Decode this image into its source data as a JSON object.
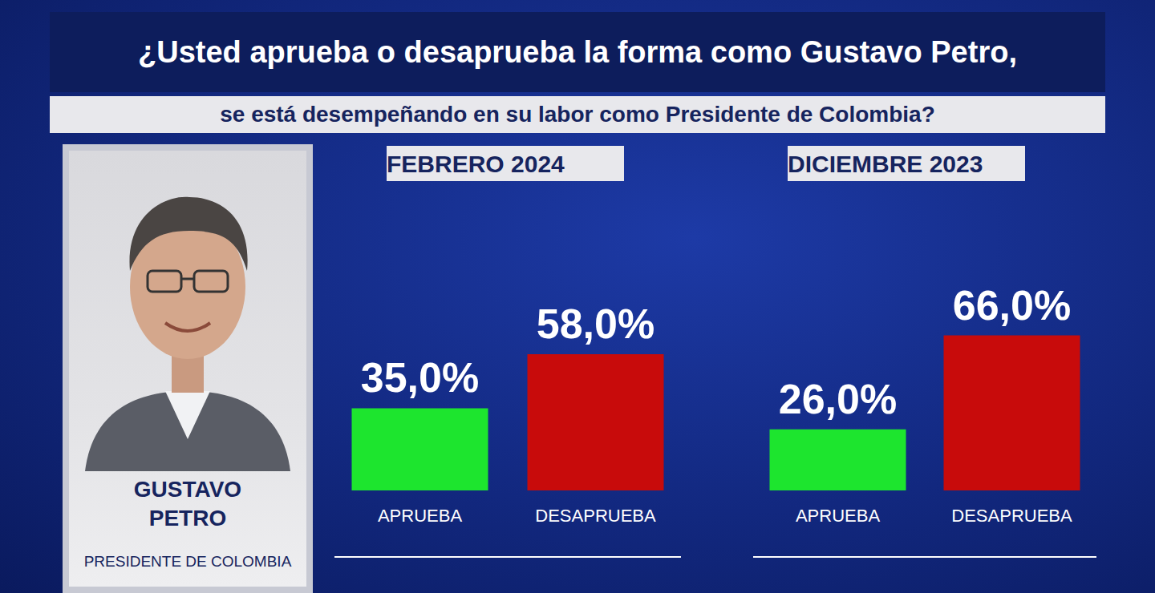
{
  "header": {
    "line1": "¿Usted aprueba o desaprueba la forma como Gustavo Petro,",
    "line2": "se está desempeñando en su labor como Presidente de Colombia?"
  },
  "profile": {
    "name": [
      "GUSTAVO",
      "PETRO"
    ],
    "role": "PRESIDENTE DE COLOMBIA"
  },
  "chart_data": [
    {
      "type": "bar",
      "title": "FEBRERO 2024",
      "categories": [
        "APRUEBA",
        "DESAPRUEBA"
      ],
      "values": [
        35,
        58
      ],
      "value_labels": [
        "35,0%",
        "58,0%"
      ],
      "colors": [
        "#1de52e",
        "#c80b0b"
      ],
      "ylim": [
        0,
        100
      ],
      "data_labels": true,
      "tick_labels": "x",
      "grid": false
    },
    {
      "type": "bar",
      "title": "DICIEMBRE 2023",
      "categories": [
        "APRUEBA",
        "DESAPRUEBA"
      ],
      "values": [
        26,
        66
      ],
      "value_labels": [
        "26,0%",
        "66,0%"
      ],
      "colors": [
        "#1de52e",
        "#c80b0b"
      ],
      "ylim": [
        0,
        100
      ],
      "data_labels": true,
      "tick_labels": "x",
      "grid": false
    }
  ]
}
